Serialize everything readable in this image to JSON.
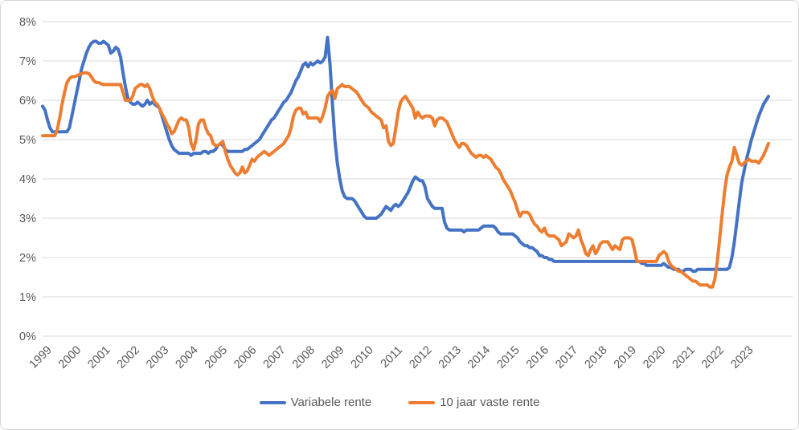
{
  "chart": {
    "y_axis_ticks": [
      "0%",
      "1%",
      "2%",
      "3%",
      "4%",
      "5%",
      "6%",
      "7%",
      "8%"
    ],
    "x_axis_year_labels": [
      "1999",
      "2000",
      "2001",
      "2002",
      "2003",
      "2004",
      "2005",
      "2006",
      "2007",
      "2008",
      "2009",
      "2010",
      "2011",
      "2012",
      "2013",
      "2014",
      "2015",
      "2016",
      "2017",
      "2018",
      "2019",
      "2020",
      "2021",
      "2022",
      "2023"
    ],
    "colors": {
      "gridline": "#d9d9d9",
      "tick_text": "#595959"
    },
    "legend": {
      "items": [
        {
          "label": "Variabele rente",
          "color": "#4472C4"
        },
        {
          "label": "10 jaar vaste rente",
          "color": "#ED7D31"
        }
      ]
    }
  },
  "chart_data": {
    "type": "line",
    "frequency": "monthly",
    "x_start": "1999-01",
    "x_end": "2023-11",
    "ylim": [
      0,
      8
    ],
    "y_tick_step": 1,
    "grid": "horizontal",
    "legend_position": "bottom",
    "series": [
      {
        "name": "Variabele rente",
        "color": "#4472C4",
        "values": [
          5.85,
          5.75,
          5.5,
          5.3,
          5.2,
          5.2,
          5.2,
          5.2,
          5.2,
          5.2,
          5.2,
          5.3,
          5.6,
          5.9,
          6.2,
          6.5,
          6.8,
          7.0,
          7.2,
          7.35,
          7.45,
          7.5,
          7.5,
          7.45,
          7.45,
          7.5,
          7.45,
          7.4,
          7.2,
          7.25,
          7.35,
          7.3,
          7.1,
          6.7,
          6.35,
          6.05,
          5.95,
          5.9,
          5.9,
          5.95,
          5.9,
          5.85,
          5.9,
          6.0,
          5.9,
          5.95,
          5.9,
          5.85,
          5.8,
          5.6,
          5.4,
          5.2,
          5.0,
          4.85,
          4.75,
          4.7,
          4.65,
          4.65,
          4.65,
          4.65,
          4.65,
          4.6,
          4.65,
          4.65,
          4.65,
          4.65,
          4.7,
          4.7,
          4.65,
          4.7,
          4.7,
          4.75,
          4.85,
          4.9,
          4.85,
          4.75,
          4.7,
          4.7,
          4.7,
          4.7,
          4.7,
          4.7,
          4.7,
          4.75,
          4.75,
          4.8,
          4.85,
          4.9,
          4.95,
          5.0,
          5.1,
          5.2,
          5.3,
          5.4,
          5.5,
          5.55,
          5.65,
          5.75,
          5.85,
          5.95,
          6.0,
          6.1,
          6.2,
          6.35,
          6.5,
          6.6,
          6.75,
          6.9,
          6.95,
          6.85,
          6.95,
          6.9,
          6.95,
          7.0,
          6.95,
          7.0,
          7.1,
          7.6,
          6.9,
          5.9,
          5.0,
          4.4,
          4.0,
          3.7,
          3.55,
          3.5,
          3.5,
          3.5,
          3.45,
          3.35,
          3.25,
          3.15,
          3.05,
          3.0,
          3.0,
          3.0,
          3.0,
          3.0,
          3.05,
          3.1,
          3.2,
          3.3,
          3.25,
          3.2,
          3.3,
          3.35,
          3.3,
          3.35,
          3.45,
          3.55,
          3.65,
          3.8,
          3.95,
          4.05,
          4.0,
          3.95,
          3.95,
          3.8,
          3.5,
          3.4,
          3.3,
          3.25,
          3.25,
          3.25,
          3.25,
          2.9,
          2.75,
          2.7,
          2.7,
          2.7,
          2.7,
          2.7,
          2.7,
          2.65,
          2.7,
          2.7,
          2.7,
          2.7,
          2.7,
          2.7,
          2.75,
          2.8,
          2.8,
          2.8,
          2.8,
          2.8,
          2.75,
          2.65,
          2.6,
          2.6,
          2.6,
          2.6,
          2.6,
          2.6,
          2.55,
          2.5,
          2.4,
          2.35,
          2.3,
          2.3,
          2.25,
          2.25,
          2.2,
          2.15,
          2.05,
          2.05,
          2.0,
          2.0,
          1.95,
          1.95,
          1.9,
          1.9,
          1.9,
          1.9,
          1.9,
          1.9,
          1.9,
          1.9,
          1.9,
          1.9,
          1.9,
          1.9,
          1.9,
          1.9,
          1.9,
          1.9,
          1.9,
          1.9,
          1.9,
          1.9,
          1.9,
          1.9,
          1.9,
          1.9,
          1.9,
          1.9,
          1.9,
          1.9,
          1.9,
          1.9,
          1.9,
          1.9,
          1.9,
          1.9,
          1.9,
          1.9,
          1.85,
          1.85,
          1.8,
          1.8,
          1.8,
          1.8,
          1.8,
          1.8,
          1.8,
          1.85,
          1.8,
          1.75,
          1.75,
          1.7,
          1.7,
          1.7,
          1.65,
          1.65,
          1.7,
          1.7,
          1.7,
          1.65,
          1.65,
          1.7,
          1.7,
          1.7,
          1.7,
          1.7,
          1.7,
          1.7,
          1.7,
          1.7,
          1.7,
          1.7,
          1.7,
          1.7,
          1.75,
          2.0,
          2.4,
          2.9,
          3.4,
          3.9,
          4.2,
          4.5,
          4.75,
          5.0,
          5.2,
          5.4,
          5.6,
          5.75,
          5.9,
          6.0,
          6.1
        ]
      },
      {
        "name": "10 jaar vaste rente",
        "color": "#ED7D31",
        "values": [
          5.1,
          5.1,
          5.1,
          5.1,
          5.1,
          5.1,
          5.25,
          5.55,
          5.9,
          6.2,
          6.45,
          6.55,
          6.6,
          6.6,
          6.62,
          6.65,
          6.68,
          6.7,
          6.7,
          6.68,
          6.6,
          6.5,
          6.45,
          6.45,
          6.42,
          6.4,
          6.4,
          6.4,
          6.4,
          6.4,
          6.4,
          6.4,
          6.4,
          6.2,
          6.0,
          6.0,
          6.0,
          6.1,
          6.3,
          6.35,
          6.4,
          6.4,
          6.35,
          6.4,
          6.3,
          6.1,
          5.95,
          5.9,
          5.8,
          5.65,
          5.55,
          5.4,
          5.3,
          5.15,
          5.2,
          5.35,
          5.5,
          5.55,
          5.5,
          5.5,
          5.3,
          4.9,
          4.75,
          5.0,
          5.4,
          5.5,
          5.5,
          5.3,
          5.15,
          5.1,
          4.9,
          4.85,
          4.85,
          4.9,
          4.95,
          4.7,
          4.5,
          4.35,
          4.25,
          4.15,
          4.1,
          4.15,
          4.3,
          4.15,
          4.2,
          4.35,
          4.5,
          4.45,
          4.55,
          4.6,
          4.65,
          4.7,
          4.65,
          4.6,
          4.65,
          4.7,
          4.75,
          4.8,
          4.85,
          4.9,
          5.0,
          5.1,
          5.3,
          5.6,
          5.75,
          5.8,
          5.8,
          5.65,
          5.7,
          5.55,
          5.55,
          5.55,
          5.55,
          5.55,
          5.45,
          5.6,
          5.8,
          6.1,
          6.2,
          6.25,
          6.05,
          6.3,
          6.35,
          6.4,
          6.35,
          6.35,
          6.35,
          6.3,
          6.25,
          6.2,
          6.1,
          6.0,
          5.9,
          5.85,
          5.8,
          5.7,
          5.65,
          5.6,
          5.55,
          5.5,
          5.3,
          5.35,
          4.95,
          4.85,
          4.9,
          5.3,
          5.7,
          5.95,
          6.05,
          6.1,
          6.0,
          5.9,
          5.8,
          5.55,
          5.7,
          5.6,
          5.55,
          5.6,
          5.6,
          5.6,
          5.55,
          5.35,
          5.5,
          5.55,
          5.55,
          5.5,
          5.45,
          5.3,
          5.15,
          5.0,
          4.9,
          4.8,
          4.9,
          4.9,
          4.85,
          4.75,
          4.65,
          4.6,
          4.55,
          4.6,
          4.6,
          4.55,
          4.6,
          4.55,
          4.5,
          4.4,
          4.3,
          4.25,
          4.15,
          4.0,
          3.9,
          3.8,
          3.7,
          3.55,
          3.4,
          3.2,
          3.05,
          3.15,
          3.15,
          3.15,
          3.1,
          2.95,
          2.85,
          2.8,
          2.7,
          2.65,
          2.75,
          2.6,
          2.55,
          2.55,
          2.55,
          2.5,
          2.45,
          2.3,
          2.35,
          2.4,
          2.6,
          2.55,
          2.5,
          2.55,
          2.7,
          2.45,
          2.3,
          2.1,
          2.05,
          2.2,
          2.3,
          2.1,
          2.2,
          2.35,
          2.4,
          2.4,
          2.4,
          2.3,
          2.2,
          2.3,
          2.25,
          2.2,
          2.45,
          2.5,
          2.5,
          2.5,
          2.45,
          2.2,
          1.9,
          1.9,
          1.9,
          1.9,
          1.9,
          1.9,
          1.9,
          1.9,
          1.9,
          2.05,
          2.1,
          2.15,
          2.1,
          1.9,
          1.8,
          1.75,
          1.7,
          1.65,
          1.65,
          1.6,
          1.55,
          1.5,
          1.45,
          1.4,
          1.4,
          1.35,
          1.3,
          1.3,
          1.3,
          1.3,
          1.25,
          1.25,
          1.45,
          1.9,
          2.5,
          3.1,
          3.7,
          4.1,
          4.3,
          4.45,
          4.8,
          4.6,
          4.4,
          4.35,
          4.4,
          4.45,
          4.5,
          4.45,
          4.45,
          4.45,
          4.4,
          4.5,
          4.6,
          4.75,
          4.9
        ]
      }
    ]
  }
}
